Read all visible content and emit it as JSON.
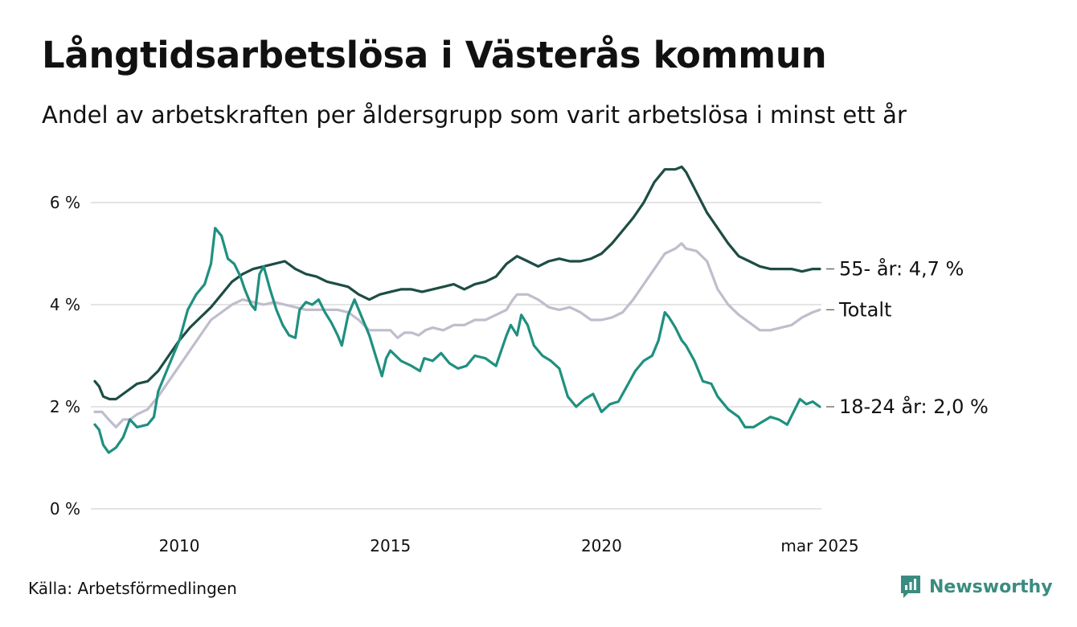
{
  "title": "Långtidsarbetslösa i Västerås kommun",
  "subtitle": "Andel av arbetskraften per åldersgrupp som varit arbetslösa i minst ett år",
  "source": "Källa: Arbetsförmedlingen",
  "brand": {
    "name": "Newsworthy",
    "icon": "newsworthy-logo-icon",
    "color": "#3a8c80"
  },
  "chart_data": {
    "type": "line",
    "title": "Långtidsarbetslösa i Västerås kommun",
    "xlabel": "",
    "ylabel": "",
    "x_range": [
      2008.0,
      2025.17
    ],
    "ylim": [
      0,
      6.9
    ],
    "grid": true,
    "y_ticks": [
      {
        "value": 0,
        "label": "0 %"
      },
      {
        "value": 2,
        "label": "2 %"
      },
      {
        "value": 4,
        "label": "4 %"
      },
      {
        "value": 6,
        "label": "6 %"
      }
    ],
    "x_ticks": [
      {
        "value": 2010,
        "label": "2010"
      },
      {
        "value": 2015,
        "label": "2015"
      },
      {
        "value": 2020,
        "label": "2020"
      },
      {
        "value": 2025.17,
        "label": "mar 2025"
      }
    ],
    "series": [
      {
        "name": "Totalt",
        "end_label": "Totalt",
        "color": "#c0bdcc",
        "points": [
          [
            2008.0,
            1.9
          ],
          [
            2008.17,
            1.9
          ],
          [
            2008.33,
            1.75
          ],
          [
            2008.5,
            1.6
          ],
          [
            2008.67,
            1.75
          ],
          [
            2008.83,
            1.75
          ],
          [
            2009.0,
            1.85
          ],
          [
            2009.25,
            1.95
          ],
          [
            2009.5,
            2.2
          ],
          [
            2009.75,
            2.5
          ],
          [
            2010.0,
            2.8
          ],
          [
            2010.25,
            3.1
          ],
          [
            2010.5,
            3.4
          ],
          [
            2010.75,
            3.7
          ],
          [
            2011.0,
            3.85
          ],
          [
            2011.25,
            4.0
          ],
          [
            2011.5,
            4.1
          ],
          [
            2011.75,
            4.05
          ],
          [
            2012.0,
            4.0
          ],
          [
            2012.25,
            4.05
          ],
          [
            2012.5,
            4.0
          ],
          [
            2012.75,
            3.95
          ],
          [
            2013.0,
            3.9
          ],
          [
            2013.25,
            3.9
          ],
          [
            2013.5,
            3.9
          ],
          [
            2013.75,
            3.9
          ],
          [
            2014.0,
            3.85
          ],
          [
            2014.25,
            3.7
          ],
          [
            2014.5,
            3.5
          ],
          [
            2014.75,
            3.5
          ],
          [
            2015.0,
            3.5
          ],
          [
            2015.17,
            3.35
          ],
          [
            2015.33,
            3.45
          ],
          [
            2015.5,
            3.45
          ],
          [
            2015.67,
            3.4
          ],
          [
            2015.83,
            3.5
          ],
          [
            2016.0,
            3.55
          ],
          [
            2016.25,
            3.5
          ],
          [
            2016.5,
            3.6
          ],
          [
            2016.75,
            3.6
          ],
          [
            2017.0,
            3.7
          ],
          [
            2017.25,
            3.7
          ],
          [
            2017.5,
            3.8
          ],
          [
            2017.75,
            3.9
          ],
          [
            2017.9,
            4.1
          ],
          [
            2018.0,
            4.2
          ],
          [
            2018.25,
            4.2
          ],
          [
            2018.5,
            4.1
          ],
          [
            2018.75,
            3.95
          ],
          [
            2019.0,
            3.9
          ],
          [
            2019.25,
            3.95
          ],
          [
            2019.5,
            3.85
          ],
          [
            2019.75,
            3.7
          ],
          [
            2020.0,
            3.7
          ],
          [
            2020.25,
            3.75
          ],
          [
            2020.5,
            3.85
          ],
          [
            2020.75,
            4.1
          ],
          [
            2021.0,
            4.4
          ],
          [
            2021.25,
            4.7
          ],
          [
            2021.5,
            5.0
          ],
          [
            2021.75,
            5.1
          ],
          [
            2021.9,
            5.2
          ],
          [
            2022.0,
            5.1
          ],
          [
            2022.25,
            5.05
          ],
          [
            2022.5,
            4.85
          ],
          [
            2022.75,
            4.3
          ],
          [
            2023.0,
            4.0
          ],
          [
            2023.25,
            3.8
          ],
          [
            2023.5,
            3.65
          ],
          [
            2023.75,
            3.5
          ],
          [
            2024.0,
            3.5
          ],
          [
            2024.25,
            3.55
          ],
          [
            2024.5,
            3.6
          ],
          [
            2024.75,
            3.75
          ],
          [
            2025.0,
            3.85
          ],
          [
            2025.17,
            3.9
          ]
        ]
      },
      {
        "name": "55- år",
        "end_label": "55- år: 4,7 %",
        "color": "#1d4d44",
        "points": [
          [
            2008.0,
            2.5
          ],
          [
            2008.1,
            2.4
          ],
          [
            2008.2,
            2.2
          ],
          [
            2008.35,
            2.15
          ],
          [
            2008.5,
            2.15
          ],
          [
            2008.75,
            2.3
          ],
          [
            2009.0,
            2.45
          ],
          [
            2009.25,
            2.5
          ],
          [
            2009.5,
            2.7
          ],
          [
            2009.75,
            3.0
          ],
          [
            2010.0,
            3.3
          ],
          [
            2010.25,
            3.55
          ],
          [
            2010.5,
            3.75
          ],
          [
            2010.75,
            3.95
          ],
          [
            2011.0,
            4.2
          ],
          [
            2011.25,
            4.45
          ],
          [
            2011.5,
            4.6
          ],
          [
            2011.75,
            4.7
          ],
          [
            2012.0,
            4.75
          ],
          [
            2012.25,
            4.8
          ],
          [
            2012.5,
            4.85
          ],
          [
            2012.75,
            4.7
          ],
          [
            2013.0,
            4.6
          ],
          [
            2013.25,
            4.55
          ],
          [
            2013.5,
            4.45
          ],
          [
            2013.75,
            4.4
          ],
          [
            2014.0,
            4.35
          ],
          [
            2014.25,
            4.2
          ],
          [
            2014.5,
            4.1
          ],
          [
            2014.75,
            4.2
          ],
          [
            2015.0,
            4.25
          ],
          [
            2015.25,
            4.3
          ],
          [
            2015.5,
            4.3
          ],
          [
            2015.75,
            4.25
          ],
          [
            2016.0,
            4.3
          ],
          [
            2016.25,
            4.35
          ],
          [
            2016.5,
            4.4
          ],
          [
            2016.75,
            4.3
          ],
          [
            2017.0,
            4.4
          ],
          [
            2017.25,
            4.45
          ],
          [
            2017.5,
            4.55
          ],
          [
            2017.75,
            4.8
          ],
          [
            2018.0,
            4.95
          ],
          [
            2018.25,
            4.85
          ],
          [
            2018.5,
            4.75
          ],
          [
            2018.75,
            4.85
          ],
          [
            2019.0,
            4.9
          ],
          [
            2019.25,
            4.85
          ],
          [
            2019.5,
            4.85
          ],
          [
            2019.75,
            4.9
          ],
          [
            2020.0,
            5.0
          ],
          [
            2020.25,
            5.2
          ],
          [
            2020.5,
            5.45
          ],
          [
            2020.75,
            5.7
          ],
          [
            2021.0,
            6.0
          ],
          [
            2021.25,
            6.4
          ],
          [
            2021.5,
            6.65
          ],
          [
            2021.75,
            6.65
          ],
          [
            2021.9,
            6.7
          ],
          [
            2022.0,
            6.6
          ],
          [
            2022.25,
            6.2
          ],
          [
            2022.5,
            5.8
          ],
          [
            2022.75,
            5.5
          ],
          [
            2023.0,
            5.2
          ],
          [
            2023.25,
            4.95
          ],
          [
            2023.5,
            4.85
          ],
          [
            2023.75,
            4.75
          ],
          [
            2024.0,
            4.7
          ],
          [
            2024.25,
            4.7
          ],
          [
            2024.5,
            4.7
          ],
          [
            2024.75,
            4.65
          ],
          [
            2025.0,
            4.7
          ],
          [
            2025.17,
            4.7
          ]
        ]
      },
      {
        "name": "18-24 år",
        "end_label": "18-24 år: 2,0 %",
        "color": "#1f9080",
        "points": [
          [
            2008.0,
            1.65
          ],
          [
            2008.1,
            1.55
          ],
          [
            2008.2,
            1.25
          ],
          [
            2008.33,
            1.1
          ],
          [
            2008.5,
            1.2
          ],
          [
            2008.67,
            1.4
          ],
          [
            2008.83,
            1.75
          ],
          [
            2009.0,
            1.6
          ],
          [
            2009.25,
            1.65
          ],
          [
            2009.4,
            1.8
          ],
          [
            2009.5,
            2.3
          ],
          [
            2009.75,
            2.8
          ],
          [
            2010.0,
            3.3
          ],
          [
            2010.2,
            3.9
          ],
          [
            2010.4,
            4.2
          ],
          [
            2010.6,
            4.4
          ],
          [
            2010.75,
            4.8
          ],
          [
            2010.85,
            5.5
          ],
          [
            2011.0,
            5.35
          ],
          [
            2011.15,
            4.9
          ],
          [
            2011.3,
            4.8
          ],
          [
            2011.45,
            4.55
          ],
          [
            2011.55,
            4.3
          ],
          [
            2011.7,
            4.0
          ],
          [
            2011.8,
            3.9
          ],
          [
            2011.9,
            4.6
          ],
          [
            2012.0,
            4.75
          ],
          [
            2012.15,
            4.3
          ],
          [
            2012.3,
            3.9
          ],
          [
            2012.45,
            3.6
          ],
          [
            2012.6,
            3.4
          ],
          [
            2012.75,
            3.35
          ],
          [
            2012.85,
            3.9
          ],
          [
            2013.0,
            4.05
          ],
          [
            2013.15,
            4.0
          ],
          [
            2013.3,
            4.1
          ],
          [
            2013.45,
            3.85
          ],
          [
            2013.6,
            3.65
          ],
          [
            2013.75,
            3.4
          ],
          [
            2013.85,
            3.2
          ],
          [
            2014.0,
            3.8
          ],
          [
            2014.15,
            4.1
          ],
          [
            2014.3,
            3.8
          ],
          [
            2014.5,
            3.4
          ],
          [
            2014.65,
            3.0
          ],
          [
            2014.8,
            2.6
          ],
          [
            2014.9,
            2.95
          ],
          [
            2015.0,
            3.1
          ],
          [
            2015.25,
            2.9
          ],
          [
            2015.5,
            2.8
          ],
          [
            2015.7,
            2.7
          ],
          [
            2015.8,
            2.95
          ],
          [
            2016.0,
            2.9
          ],
          [
            2016.2,
            3.05
          ],
          [
            2016.4,
            2.85
          ],
          [
            2016.6,
            2.75
          ],
          [
            2016.8,
            2.8
          ],
          [
            2017.0,
            3.0
          ],
          [
            2017.25,
            2.95
          ],
          [
            2017.5,
            2.8
          ],
          [
            2017.75,
            3.4
          ],
          [
            2017.85,
            3.6
          ],
          [
            2018.0,
            3.4
          ],
          [
            2018.1,
            3.8
          ],
          [
            2018.25,
            3.6
          ],
          [
            2018.4,
            3.2
          ],
          [
            2018.6,
            3.0
          ],
          [
            2018.8,
            2.9
          ],
          [
            2019.0,
            2.75
          ],
          [
            2019.2,
            2.2
          ],
          [
            2019.4,
            2.0
          ],
          [
            2019.6,
            2.15
          ],
          [
            2019.8,
            2.25
          ],
          [
            2020.0,
            1.9
          ],
          [
            2020.2,
            2.05
          ],
          [
            2020.4,
            2.1
          ],
          [
            2020.6,
            2.4
          ],
          [
            2020.8,
            2.7
          ],
          [
            2021.0,
            2.9
          ],
          [
            2021.2,
            3.0
          ],
          [
            2021.35,
            3.3
          ],
          [
            2021.5,
            3.85
          ],
          [
            2021.6,
            3.75
          ],
          [
            2021.75,
            3.55
          ],
          [
            2021.9,
            3.3
          ],
          [
            2022.0,
            3.2
          ],
          [
            2022.2,
            2.9
          ],
          [
            2022.4,
            2.5
          ],
          [
            2022.6,
            2.45
          ],
          [
            2022.75,
            2.2
          ],
          [
            2023.0,
            1.95
          ],
          [
            2023.25,
            1.8
          ],
          [
            2023.4,
            1.6
          ],
          [
            2023.6,
            1.6
          ],
          [
            2023.8,
            1.7
          ],
          [
            2024.0,
            1.8
          ],
          [
            2024.2,
            1.75
          ],
          [
            2024.4,
            1.65
          ],
          [
            2024.55,
            1.9
          ],
          [
            2024.7,
            2.15
          ],
          [
            2024.85,
            2.05
          ],
          [
            2025.0,
            2.1
          ],
          [
            2025.17,
            2.0
          ]
        ]
      }
    ]
  }
}
